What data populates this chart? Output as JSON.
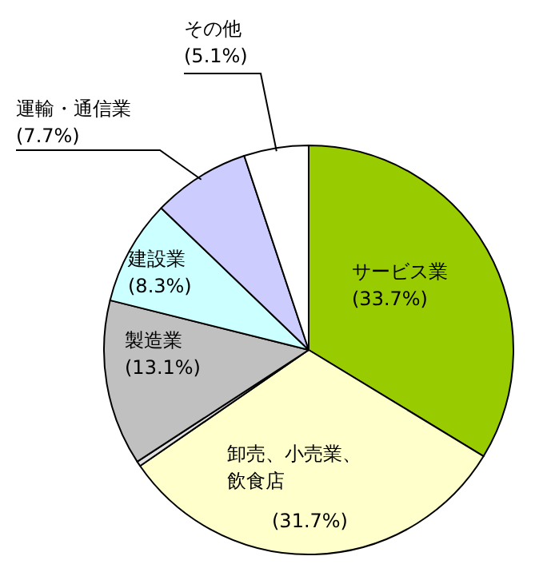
{
  "chart_data": {
    "type": "pie",
    "categories": [
      "サービス業",
      "卸売、小売業、飲食店",
      null,
      "製造業",
      "建設業",
      "運輸・通信業",
      "その他"
    ],
    "values": [
      33.7,
      31.7,
      0.4,
      13.1,
      8.3,
      7.7,
      5.1
    ],
    "value_labels": [
      "(33.7%)",
      "(31.7%)",
      null,
      "(13.1%)",
      "(8.3%)",
      "(7.7%)",
      "(5.1%)"
    ],
    "colors": [
      "#99cc00",
      "#ffffcc",
      "#e0e0e0",
      "#c0c0c0",
      "#ccffff",
      "#ccccff",
      "#ffffff"
    ]
  }
}
